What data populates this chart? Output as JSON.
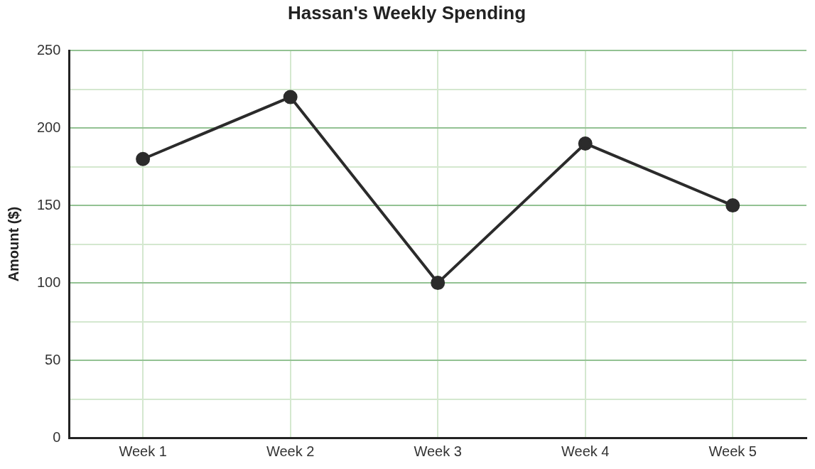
{
  "chart_data": {
    "type": "line",
    "title": "Hassan's Weekly Spending",
    "ylabel": "Amount ($)",
    "categories": [
      "Week 1",
      "Week 2",
      "Week 3",
      "Week 4",
      "Week 5"
    ],
    "series": [
      {
        "color": "#2b2b2b",
        "values": [
          180,
          220,
          100,
          190,
          150
        ]
      }
    ],
    "ylim": [
      0,
      250
    ],
    "yticks": [
      0,
      {
        "value": 25,
        "label": null
      },
      50,
      {
        "value": 75,
        "label": null
      },
      100,
      {
        "value": 125,
        "label": null
      },
      150,
      {
        "value": 175,
        "label": null
      },
      200,
      {
        "value": 225,
        "label": null
      },
      250
    ],
    "grid": true,
    "legend": false,
    "marker": "circle",
    "line_style": "solid"
  }
}
